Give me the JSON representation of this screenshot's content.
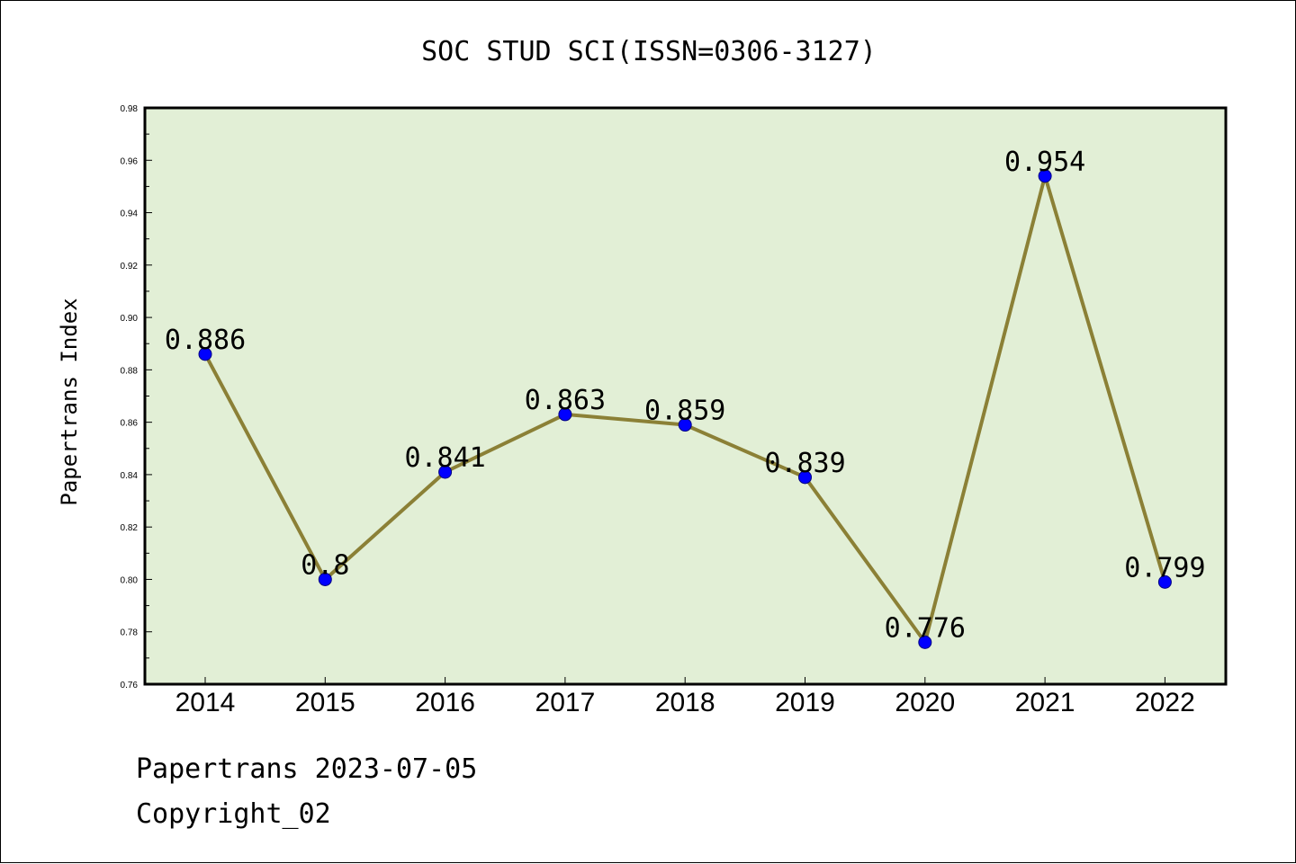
{
  "chart_data": {
    "type": "line",
    "title": "SOC STUD SCI(ISSN=0306-3127)",
    "xlabel": "",
    "ylabel": "Papertrans Index",
    "categories": [
      "2014",
      "2015",
      "2016",
      "2017",
      "2018",
      "2019",
      "2020",
      "2021",
      "2022"
    ],
    "series": [
      {
        "values": [
          0.886,
          0.8,
          0.841,
          0.863,
          0.859,
          0.839,
          0.776,
          0.954,
          0.799
        ],
        "data_labels": [
          "0.886",
          "0.8",
          "0.841",
          "0.863",
          "0.859",
          "0.839",
          "0.776",
          "0.954",
          "0.799"
        ]
      }
    ],
    "ylim": [
      0.76,
      0.98
    ],
    "yticks": [
      "0.76",
      "0.78",
      "0.80",
      "0.82",
      "0.84",
      "0.86",
      "0.88",
      "0.90",
      "0.92",
      "0.94",
      "0.96",
      "0.98"
    ],
    "grid": false,
    "colors": {
      "plot_background": "#e2efd6",
      "line": "#8b8036",
      "marker": "#0000ff",
      "marker_edge": "#000080"
    }
  },
  "footer": {
    "line1": "Papertrans 2023-07-05",
    "line2": "Copyright_02"
  }
}
